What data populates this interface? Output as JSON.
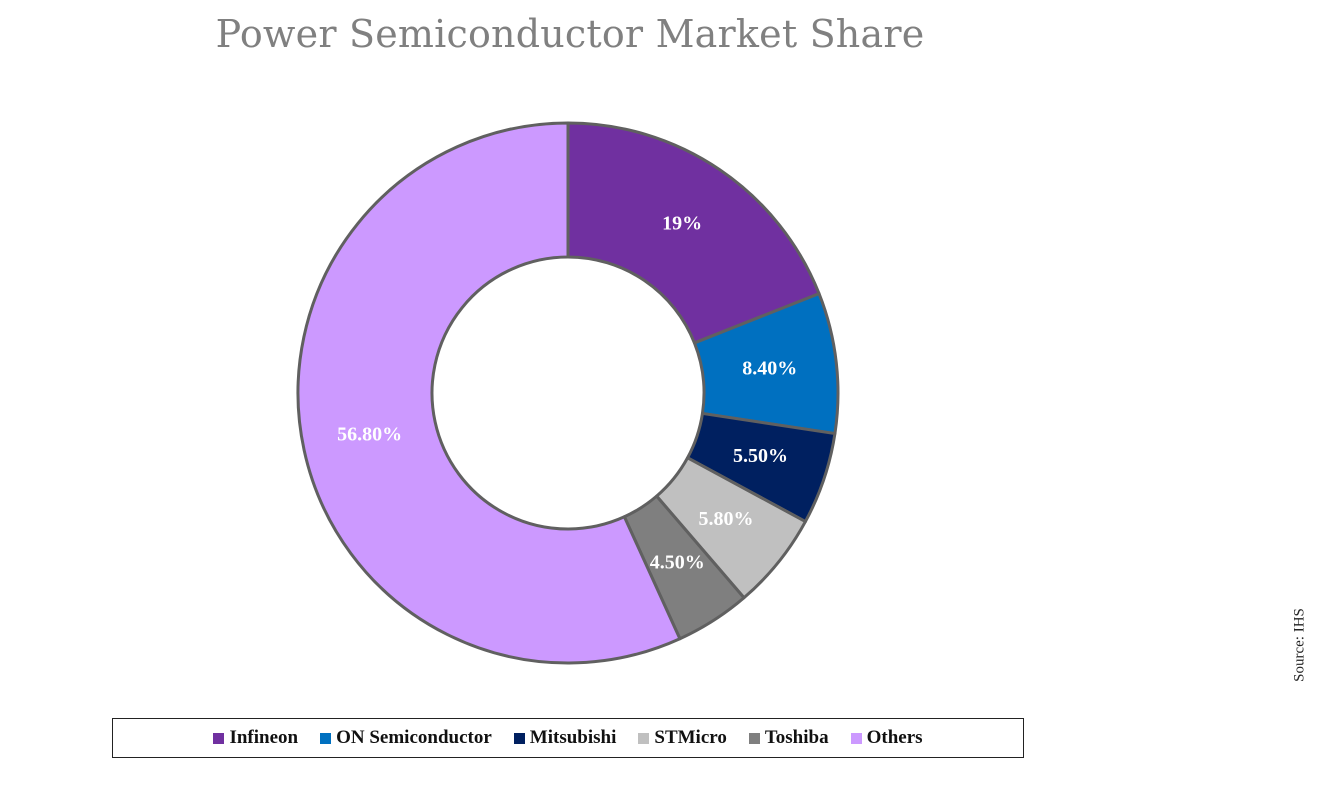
{
  "chart_data": {
    "type": "pie",
    "title": "Power Semiconductor Market Share",
    "categories": [
      "Infineon",
      "ON Semiconductor",
      "Mitsubishi",
      "STMicro",
      "Toshiba",
      "Others"
    ],
    "values": [
      19,
      8.4,
      5.5,
      5.8,
      4.5,
      56.8
    ],
    "labels": [
      "19%",
      "8.40%",
      "5.50%",
      "5.80%",
      "4.50%",
      "56.80%"
    ],
    "colors": [
      "#7030A0",
      "#0070C0",
      "#002060",
      "#C0C0C0",
      "#7F7F7F",
      "#CC99FF"
    ],
    "label_colors": [
      "#FFFFFF",
      "#FFFFFF",
      "#FFFFFF",
      "#FFFFFF",
      "#FFFFFF",
      "#FFFFFF"
    ],
    "donut": true,
    "legend_position": "bottom"
  },
  "source": "Source: IHS"
}
